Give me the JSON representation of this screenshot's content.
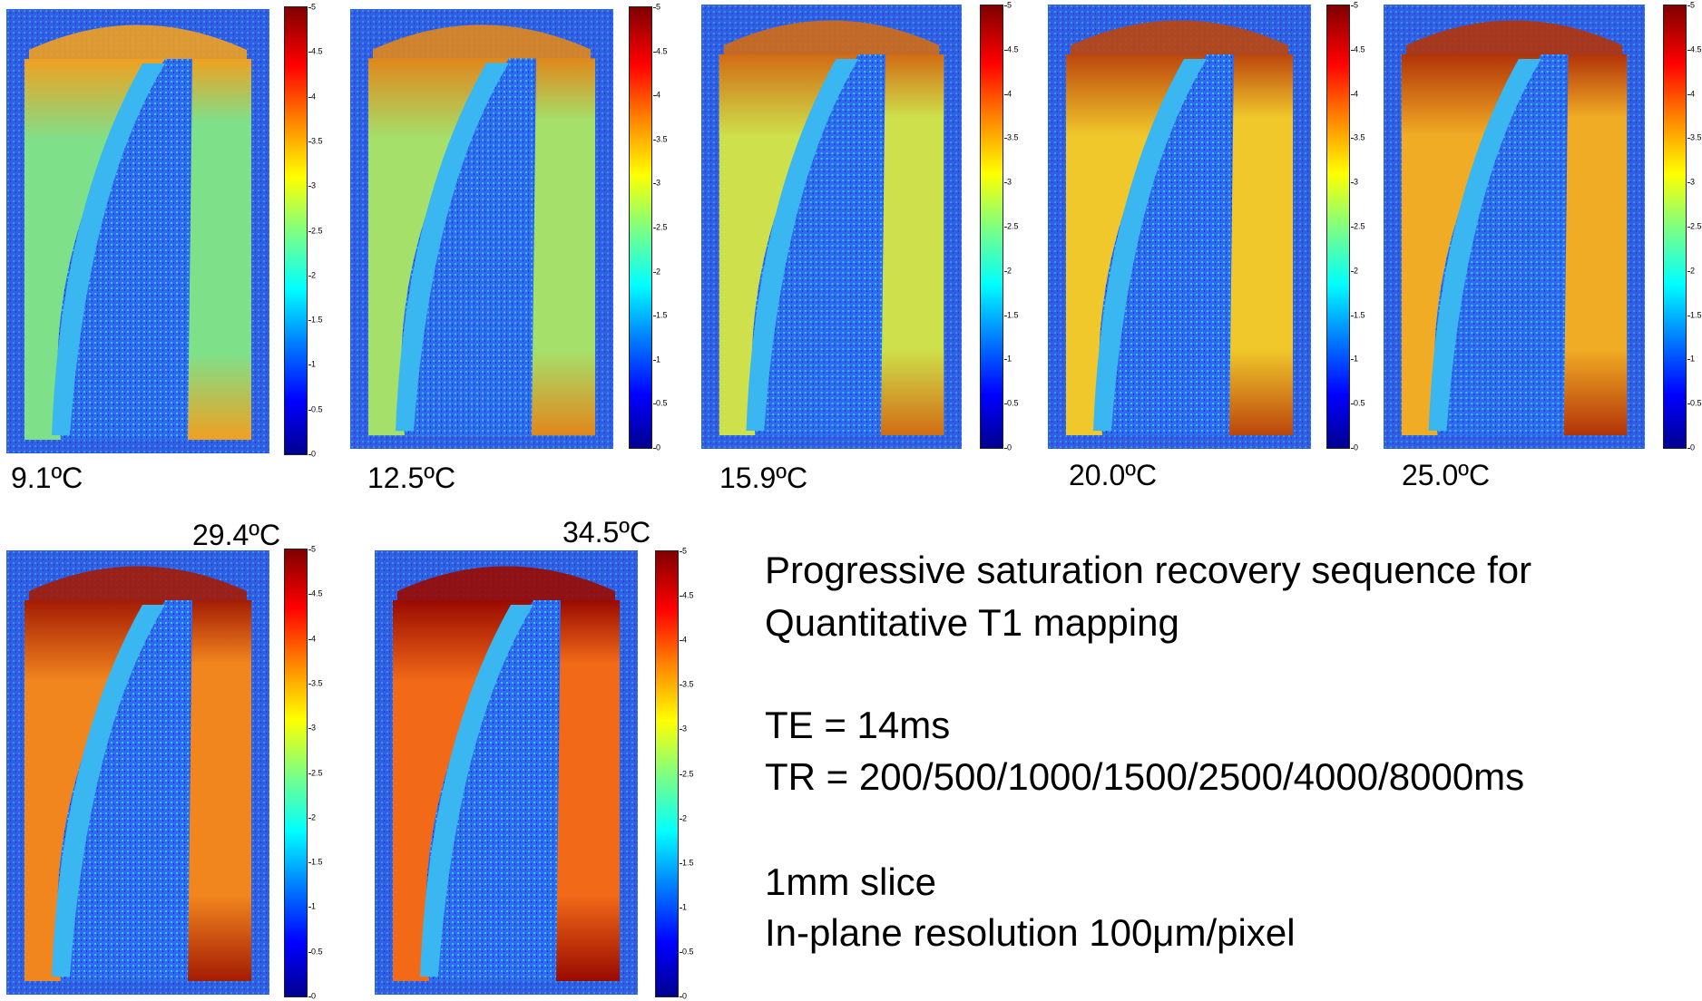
{
  "colorbar": {
    "ticks": [
      "5",
      "4.5",
      "4",
      "3.5",
      "3",
      "2.5",
      "2",
      "1.5",
      "1",
      "0.5",
      "0"
    ],
    "min": 0,
    "max": 5
  },
  "panels": [
    {
      "temp": "9.1ºC",
      "warmth": 0.0
    },
    {
      "temp": "12.5ºC",
      "warmth": 0.17
    },
    {
      "temp": "15.9ºC",
      "warmth": 0.35
    },
    {
      "temp": "20.0ºC",
      "warmth": 0.6
    },
    {
      "temp": "25.0ºC",
      "warmth": 0.72
    },
    {
      "temp": "29.4ºC",
      "warmth": 0.88
    },
    {
      "temp": "34.5ºC",
      "warmth": 1.0
    }
  ],
  "description": {
    "line1": "Progressive saturation recovery sequence for",
    "line2": "Quantitative T1 mapping",
    "te": "TE = 14ms",
    "tr": "TR = 200/500/1000/1500/2500/4000/8000ms",
    "slice": "1mm slice",
    "resolution": "In-plane resolution 100μm/pixel"
  }
}
